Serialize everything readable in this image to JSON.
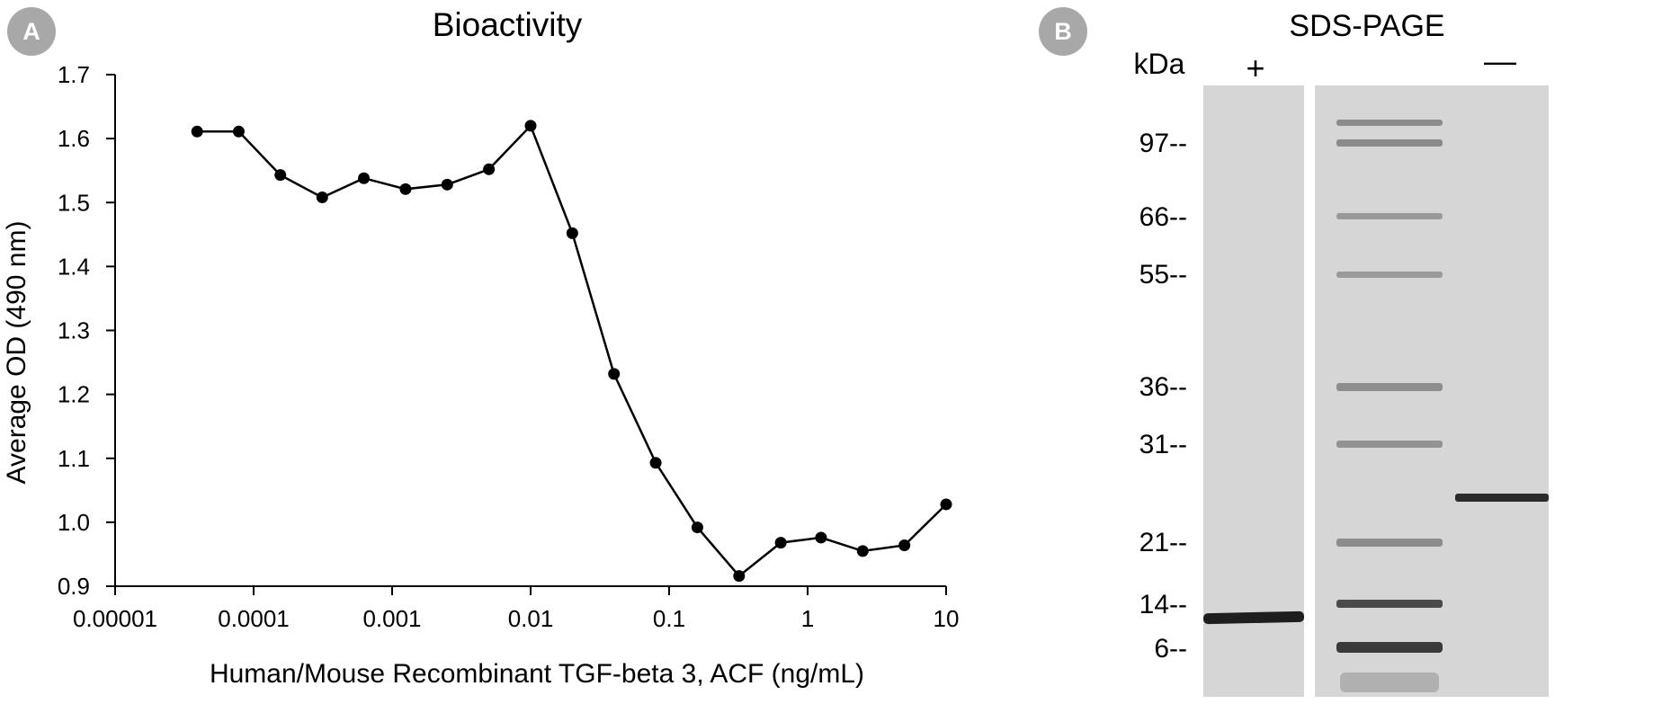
{
  "panel_a": {
    "badge": "A",
    "badge_color": "#a8a8a8",
    "chart_data": {
      "type": "line",
      "title": "Bioactivity",
      "xlabel": "Human/Mouse Recombinant TGF-beta 3, ACF (ng/mL)",
      "ylabel": "Average OD (490 nm)",
      "xscale": "log",
      "xlim": [
        1e-05,
        10
      ],
      "ylim": [
        0.9,
        1.7
      ],
      "xticks": [
        1e-05,
        0.0001,
        0.001,
        0.01,
        0.1,
        1,
        10
      ],
      "xtick_labels": [
        "0.00001",
        "0.0001",
        "0.001",
        "0.01",
        "0.1",
        "1",
        "10"
      ],
      "yticks": [
        0.9,
        1.0,
        1.1,
        1.2,
        1.3,
        1.4,
        1.5,
        1.6,
        1.7
      ],
      "ytick_labels": [
        "0.9",
        "1.0",
        "1.1",
        "1.2",
        "1.3",
        "1.4",
        "1.5",
        "1.6",
        "1.7"
      ],
      "grid": false,
      "series": [
        {
          "x": [
            3.91e-05,
            7.81e-05,
            0.000156,
            0.000313,
            0.000625,
            0.00125,
            0.0025,
            0.005,
            0.01,
            0.02,
            0.04,
            0.08,
            0.16,
            0.32,
            0.64,
            1.25,
            2.5,
            5,
            10
          ],
          "y": [
            1.611,
            1.611,
            1.543,
            1.508,
            1.538,
            1.521,
            1.528,
            1.552,
            1.62,
            1.452,
            1.232,
            1.093,
            0.992,
            0.916,
            0.968,
            0.976,
            0.955,
            0.964,
            1.028
          ],
          "color": "#000000"
        }
      ]
    }
  },
  "panel_b": {
    "badge": "B",
    "badge_color": "#a8a8a8",
    "title": "SDS-PAGE",
    "unit_label": "kDa",
    "lane_labels": [
      "+",
      "—"
    ],
    "marker_labels": [
      "97--",
      "66--",
      "55--",
      "36--",
      "31--",
      "21--",
      "14--",
      "6--"
    ],
    "gel_color": "#d6d6d6"
  }
}
